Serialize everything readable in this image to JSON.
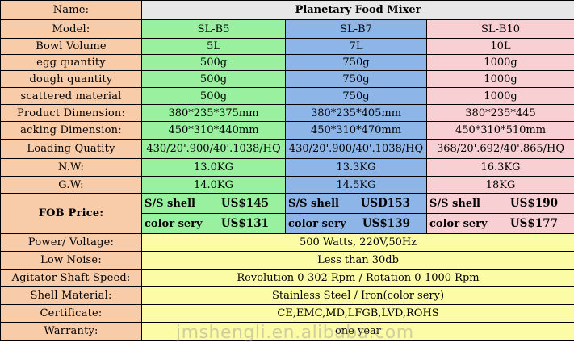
{
  "table": {
    "name_label": "Name:",
    "product_name": "Planetary Food Mixer",
    "model_label": "Model:",
    "models": [
      "SL-B5",
      "SL-B7",
      "SL-B10"
    ],
    "bowl_label": "Bowl Volume",
    "bowl": [
      "5L",
      "7L",
      "10L"
    ],
    "egg_label": "egg quantity",
    "egg": [
      "500g",
      "750g",
      "1000g"
    ],
    "dough_label": "dough quantity",
    "dough": [
      "500g",
      "750g",
      "1000g"
    ],
    "scattered_label": "scattered material",
    "scattered": [
      "500g",
      "750g",
      "1000g"
    ],
    "product_dim_label": "Product Dimension:",
    "product_dim": [
      "380*235*375mm",
      "380*235*405mm",
      "380*235*445"
    ],
    "packing_dim_label": "acking Dimension:",
    "packing_dim": [
      "450*310*440mm",
      "450*310*470mm",
      "450*310*510mm"
    ],
    "loading_label": "Loading Quatity",
    "loading": [
      "430/20'.900/40'.1038/HQ",
      "430/20'.900/40'.1038/HQ",
      "368/20'.692/40'.865/HQ"
    ],
    "nw_label": "N.W:",
    "nw": [
      "13.0KG",
      "13.3KG",
      "16.3KG"
    ],
    "gw_label": "G.W:",
    "gw": [
      "14.0KG",
      "14.5KG",
      "18KG"
    ],
    "fob_label": "FOB Price:",
    "fob_ss": [
      {
        "label": "S/S shell",
        "value": "US$145"
      },
      {
        "label": "S/S shell",
        "value": "USD153"
      },
      {
        "label": "S/S shell",
        "value": "US$190"
      }
    ],
    "fob_color": [
      {
        "label": "color sery",
        "value": "US$131"
      },
      {
        "label": "color sery",
        "value": "US$139"
      },
      {
        "label": "color sery",
        "value": "US$177"
      }
    ],
    "power_label": "Power/ Voltage:",
    "power": "500 Watts, 220V,50Hz",
    "noise_label": "Low Noise:",
    "noise": "Less than 30db",
    "agitator_label": "Agitator Shaft Speed:",
    "agitator": "Revolution 0-302 Rpm / Rotation 0-1000 Rpm",
    "shell_label": "Shell Material:",
    "shell": "Stainless Steel / Iron(color sery)",
    "cert_label": "Certificate:",
    "cert": "CE,EMC,MD,LFGB,LVD,ROHS",
    "warranty_label": "Warranty:",
    "warranty": "one year"
  },
  "watermark": "jmshengli.en.alibaba.com",
  "colors": {
    "label_bg": "#f8cba9",
    "header_bg": "#e7e7e7",
    "b5_bg": "#99f09e",
    "b7_bg": "#8eb5e8",
    "b10_bg": "#f8cfd3",
    "shared_bg": "#fdfca6"
  }
}
